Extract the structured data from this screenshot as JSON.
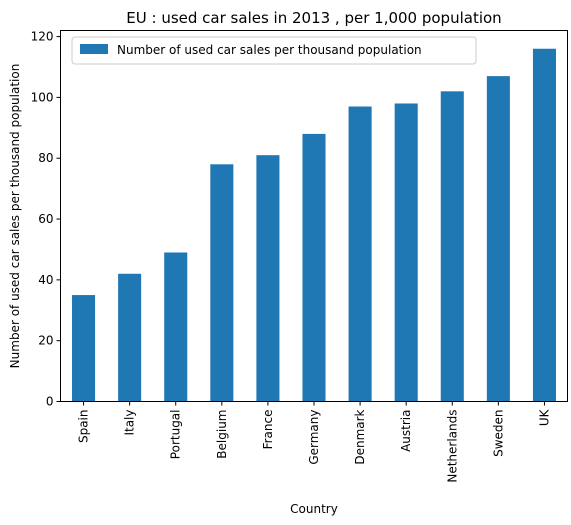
{
  "chart_data": {
    "type": "bar",
    "title": "EU : used car sales in 2013 , per 1,000 population",
    "xlabel": "Country",
    "ylabel": "Number of used car sales per thousand population",
    "categories": [
      "Spain",
      "Italy",
      "Portugal",
      "Belgium",
      "France",
      "Germany",
      "Denmark",
      "Austria",
      "Netherlands",
      "Sweden",
      "UK"
    ],
    "series": [
      {
        "name": "Number of used car sales per thousand population",
        "values": [
          35,
          42,
          49,
          78,
          81,
          88,
          97,
          98,
          102,
          107,
          116
        ],
        "color": "#1f77b4"
      }
    ],
    "ylim": [
      0,
      122
    ],
    "yticks": [
      "0",
      "20",
      "40",
      "60",
      "80",
      "100",
      "120"
    ],
    "legend": "top-left",
    "grid": false
  }
}
